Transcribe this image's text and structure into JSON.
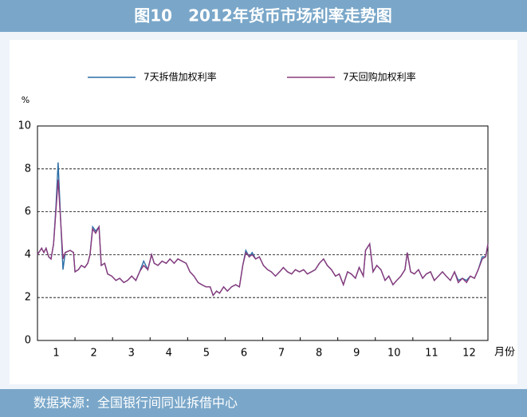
{
  "chart_data": {
    "type": "line",
    "title": "图10　2012年货币市场利率走势图",
    "source": "数据来源：全国银行间同业拆借中心",
    "y_label": "%",
    "x_label": "月份",
    "xlim": [
      0,
      12
    ],
    "xticks": [
      {
        "value": 0.5,
        "label": "1"
      },
      {
        "value": 1.5,
        "label": "2"
      },
      {
        "value": 2.5,
        "label": "3"
      },
      {
        "value": 3.5,
        "label": "4"
      },
      {
        "value": 4.5,
        "label": "5"
      },
      {
        "value": 5.5,
        "label": "6"
      },
      {
        "value": 6.5,
        "label": "7"
      },
      {
        "value": 7.5,
        "label": "8"
      },
      {
        "value": 8.5,
        "label": "9"
      },
      {
        "value": 9.5,
        "label": "10"
      },
      {
        "value": 10.5,
        "label": "11"
      },
      {
        "value": 11.5,
        "label": "12"
      }
    ],
    "xticks_minor": [
      1,
      2,
      3,
      4,
      5,
      6,
      7,
      8,
      9,
      10,
      11
    ],
    "ylim": [
      0,
      10
    ],
    "yticks": [
      0,
      2,
      4,
      6,
      8,
      10
    ],
    "grid": true,
    "legend": "top",
    "x": [
      0,
      0.11,
      0.17,
      0.23,
      0.3,
      0.36,
      0.43,
      0.49,
      0.55,
      0.62,
      0.68,
      0.74,
      0.87,
      0.96,
      1.0,
      1.09,
      1.17,
      1.26,
      1.34,
      1.4,
      1.47,
      1.55,
      1.64,
      1.7,
      1.79,
      1.87,
      1.98,
      2.09,
      2.19,
      2.3,
      2.4,
      2.51,
      2.62,
      2.72,
      2.83,
      2.94,
      3.04,
      3.11,
      3.21,
      3.32,
      3.43,
      3.53,
      3.64,
      3.74,
      3.85,
      3.96,
      4.06,
      4.17,
      4.28,
      4.38,
      4.49,
      4.6,
      4.68,
      4.77,
      4.85,
      4.96,
      5.06,
      5.17,
      5.28,
      5.38,
      5.47,
      5.55,
      5.64,
      5.72,
      5.81,
      5.91,
      6.02,
      6.13,
      6.23,
      6.34,
      6.45,
      6.55,
      6.66,
      6.77,
      6.87,
      6.98,
      7.09,
      7.19,
      7.3,
      7.4,
      7.51,
      7.62,
      7.72,
      7.83,
      7.94,
      8.04,
      8.15,
      8.26,
      8.36,
      8.47,
      8.57,
      8.68,
      8.74,
      8.85,
      8.94,
      9.04,
      9.15,
      9.26,
      9.36,
      9.47,
      9.57,
      9.68,
      9.79,
      9.85,
      9.94,
      10.04,
      10.15,
      10.26,
      10.36,
      10.47,
      10.57,
      10.68,
      10.79,
      10.89,
      11.0,
      11.11,
      11.21,
      11.32,
      11.43,
      11.53,
      11.64,
      11.74,
      11.85,
      11.94,
      12.0
    ],
    "series": [
      {
        "name": "7天拆借加权利率",
        "color": "#2b6ea6",
        "values": [
          4.0,
          4.3,
          4.1,
          4.3,
          3.9,
          3.8,
          4.5,
          6.2,
          8.3,
          5.5,
          3.3,
          4.1,
          4.2,
          4.1,
          3.2,
          3.3,
          3.5,
          3.4,
          3.6,
          4.0,
          5.3,
          5.1,
          5.3,
          3.5,
          3.6,
          3.1,
          3.0,
          2.8,
          2.9,
          2.7,
          2.8,
          3.0,
          2.8,
          3.2,
          3.7,
          3.3,
          4.0,
          3.6,
          3.5,
          3.7,
          3.6,
          3.8,
          3.6,
          3.8,
          3.7,
          3.6,
          3.2,
          3.0,
          2.7,
          2.6,
          2.5,
          2.5,
          2.1,
          2.3,
          2.2,
          2.5,
          2.3,
          2.5,
          2.6,
          2.5,
          3.5,
          4.2,
          3.9,
          4.1,
          3.8,
          3.9,
          3.5,
          3.3,
          3.2,
          3.0,
          3.2,
          3.4,
          3.2,
          3.1,
          3.3,
          3.2,
          3.3,
          3.1,
          3.2,
          3.3,
          3.6,
          3.8,
          3.5,
          3.3,
          3.0,
          3.1,
          2.6,
          3.2,
          3.1,
          2.9,
          3.4,
          3.0,
          4.2,
          4.5,
          3.2,
          3.5,
          3.3,
          2.8,
          3.0,
          2.6,
          2.8,
          3.0,
          3.3,
          4.1,
          3.2,
          3.1,
          3.3,
          2.9,
          3.1,
          3.2,
          2.8,
          3.0,
          3.2,
          3.0,
          2.8,
          3.2,
          2.8,
          2.9,
          2.8,
          3.0,
          2.9,
          3.3,
          3.9,
          3.9,
          4.5
        ]
      },
      {
        "name": "7天回购加权利率",
        "color": "#8b3a7c",
        "values": [
          4.0,
          4.3,
          4.1,
          4.3,
          3.9,
          3.8,
          4.5,
          6.0,
          7.5,
          5.5,
          3.8,
          4.1,
          4.2,
          4.1,
          3.2,
          3.3,
          3.5,
          3.4,
          3.6,
          4.0,
          5.2,
          5.0,
          5.3,
          3.5,
          3.6,
          3.1,
          3.0,
          2.8,
          2.9,
          2.7,
          2.8,
          3.0,
          2.8,
          3.2,
          3.5,
          3.3,
          4.0,
          3.6,
          3.5,
          3.7,
          3.6,
          3.8,
          3.6,
          3.8,
          3.7,
          3.6,
          3.2,
          3.0,
          2.7,
          2.6,
          2.5,
          2.5,
          2.1,
          2.3,
          2.2,
          2.5,
          2.3,
          2.5,
          2.6,
          2.5,
          3.5,
          4.1,
          3.9,
          4.0,
          3.8,
          3.9,
          3.5,
          3.3,
          3.2,
          3.0,
          3.2,
          3.4,
          3.2,
          3.1,
          3.3,
          3.2,
          3.3,
          3.1,
          3.2,
          3.3,
          3.6,
          3.8,
          3.5,
          3.3,
          3.0,
          3.1,
          2.6,
          3.2,
          3.1,
          2.9,
          3.4,
          3.0,
          4.2,
          4.5,
          3.2,
          3.5,
          3.3,
          2.8,
          3.0,
          2.6,
          2.8,
          3.0,
          3.3,
          4.1,
          3.2,
          3.1,
          3.3,
          2.9,
          3.1,
          3.2,
          2.8,
          3.0,
          3.2,
          3.0,
          2.8,
          3.2,
          2.7,
          2.9,
          2.7,
          3.0,
          2.9,
          3.3,
          3.8,
          3.9,
          4.5
        ]
      }
    ]
  }
}
